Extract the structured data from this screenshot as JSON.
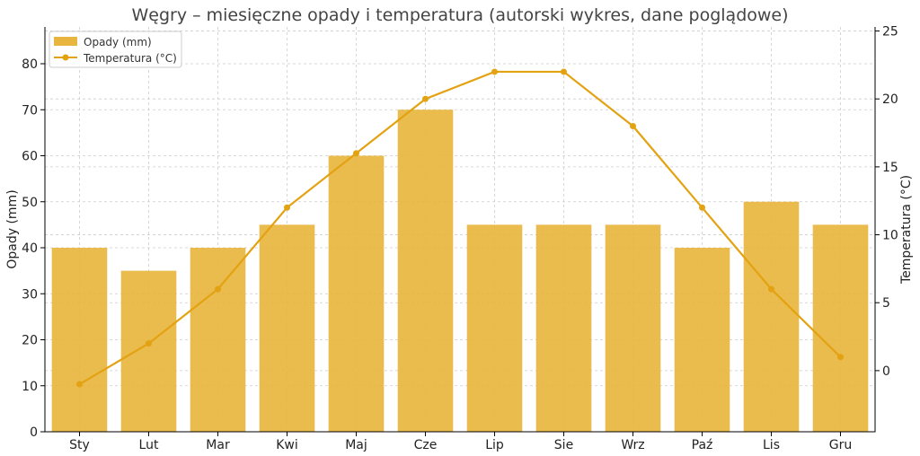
{
  "chart_data": {
    "type": "bar",
    "title": "Węgry – miesięczne opady i temperatura (autorski wykres, dane poglądowe)",
    "categories": [
      "Sty",
      "Lut",
      "Mar",
      "Kwi",
      "Maj",
      "Cze",
      "Lip",
      "Sie",
      "Wrz",
      "Paź",
      "Lis",
      "Gru"
    ],
    "ylabel": "Opady (mm)",
    "y2label": "Temperatura (°C)",
    "ylim": [
      0,
      88
    ],
    "y2lim": [
      -4.5,
      25.3
    ],
    "yticks": [
      0,
      10,
      20,
      30,
      40,
      50,
      60,
      70,
      80
    ],
    "y2ticks": [
      0,
      5,
      10,
      15,
      20,
      25
    ],
    "grid": true,
    "legend_position": "top-left",
    "series": [
      {
        "name": "Opady (mm)",
        "type": "bar",
        "axis": "left",
        "color": "#E8B53E",
        "values": [
          40,
          35,
          40,
          45,
          60,
          70,
          45,
          45,
          45,
          40,
          50,
          45
        ]
      },
      {
        "name": "Temperatura (°C)",
        "type": "line",
        "axis": "right",
        "color": "#E3A212",
        "values": [
          -1,
          2,
          6,
          12,
          16,
          20,
          22,
          22,
          18,
          12,
          6,
          1
        ]
      }
    ]
  }
}
